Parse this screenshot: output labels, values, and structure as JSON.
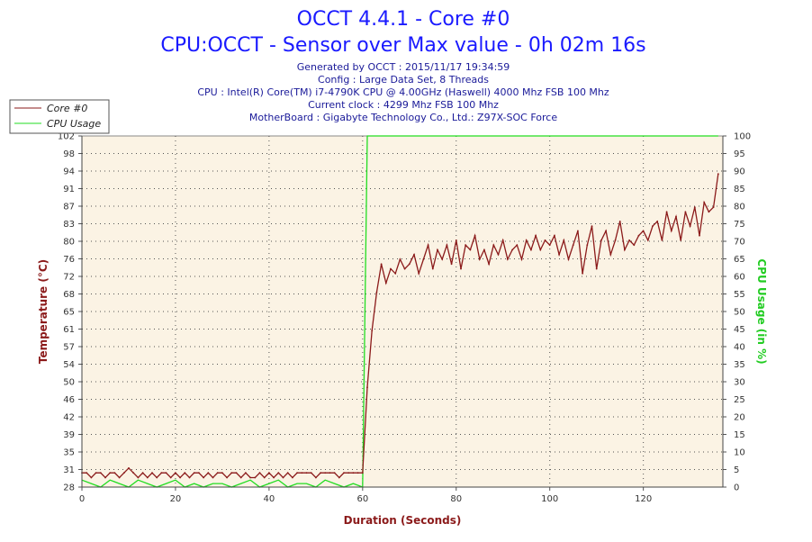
{
  "header": {
    "title": "OCCT 4.4.1 - Core #0",
    "subtitle": "CPU:OCCT - Sensor over Max value - 0h 02m 16s",
    "info": [
      "Generated by OCCT : 2015/11/17 19:34:59",
      "Config : Large Data Set, 8 Threads",
      "CPU : Intel(R) Core(TM) i7-4790K CPU @ 4.00GHz (Haswell) 4000 Mhz FSB 100 Mhz",
      "Current clock : 4299 Mhz FSB 100 Mhz",
      "MotherBoard : Gigabyte Technology Co., Ltd.: Z97X-SOC Force"
    ]
  },
  "chart_data": {
    "type": "line",
    "grid": true,
    "legend_placement": "top-left",
    "xlabel": "Duration (Seconds)",
    "ylabel_left": "Temperature (°C)",
    "ylabel_right": "CPU Usage (in %)",
    "xlim": [
      0,
      137
    ],
    "ylim_left": [
      28,
      102
    ],
    "ylim_right": [
      0,
      100
    ],
    "x_ticks": [
      "0",
      "20",
      "40",
      "60",
      "80",
      "100",
      "120"
    ],
    "y_ticks_left": [
      "28",
      "31",
      "35",
      "39",
      "42",
      "46",
      "50",
      "54",
      "57",
      "61",
      "65",
      "68",
      "72",
      "76",
      "80",
      "83",
      "87",
      "91",
      "94",
      "98",
      "102"
    ],
    "y_ticks_right": [
      "0",
      "5",
      "10",
      "15",
      "20",
      "25",
      "30",
      "35",
      "40",
      "45",
      "50",
      "55",
      "60",
      "65",
      "70",
      "75",
      "80",
      "85",
      "90",
      "95",
      "100"
    ],
    "colors": {
      "temperature": "#8b1a1a",
      "usage": "#22dd22",
      "plot_bg": "#fbf3e4"
    },
    "series": [
      {
        "name": "Core #0",
        "axis": "left",
        "x": [
          0,
          1,
          2,
          3,
          4,
          5,
          6,
          7,
          8,
          9,
          10,
          11,
          12,
          13,
          14,
          15,
          16,
          17,
          18,
          19,
          20,
          21,
          22,
          23,
          24,
          25,
          26,
          27,
          28,
          29,
          30,
          31,
          32,
          33,
          34,
          35,
          36,
          37,
          38,
          39,
          40,
          41,
          42,
          43,
          44,
          45,
          46,
          47,
          48,
          49,
          50,
          51,
          52,
          53,
          54,
          55,
          56,
          57,
          58,
          59,
          60,
          61,
          62,
          63,
          64,
          65,
          66,
          67,
          68,
          69,
          70,
          71,
          72,
          73,
          74,
          75,
          76,
          77,
          78,
          79,
          80,
          81,
          82,
          83,
          84,
          85,
          86,
          87,
          88,
          89,
          90,
          91,
          92,
          93,
          94,
          95,
          96,
          97,
          98,
          99,
          100,
          101,
          102,
          103,
          104,
          105,
          106,
          107,
          108,
          109,
          110,
          111,
          112,
          113,
          114,
          115,
          116,
          117,
          118,
          119,
          120,
          121,
          122,
          123,
          124,
          125,
          126,
          127,
          128,
          129,
          130,
          131,
          132,
          133,
          134,
          135,
          136
        ],
        "values": [
          31,
          31,
          30,
          31,
          31,
          30,
          31,
          31,
          30,
          31,
          32,
          31,
          30,
          31,
          30,
          31,
          30,
          31,
          31,
          30,
          31,
          30,
          31,
          30,
          31,
          31,
          30,
          31,
          30,
          31,
          31,
          30,
          31,
          31,
          30,
          31,
          30,
          30,
          31,
          30,
          31,
          30,
          31,
          30,
          31,
          30,
          31,
          31,
          31,
          31,
          30,
          31,
          31,
          31,
          31,
          30,
          31,
          31,
          31,
          31,
          31,
          49,
          61,
          69,
          75,
          71,
          74,
          73,
          76,
          74,
          75,
          77,
          73,
          76,
          79,
          74,
          78,
          76,
          79,
          75,
          80,
          74,
          79,
          78,
          81,
          76,
          78,
          75,
          79,
          77,
          80,
          76,
          78,
          79,
          76,
          80,
          78,
          81,
          78,
          80,
          79,
          81,
          77,
          80,
          76,
          79,
          82,
          73,
          79,
          83,
          74,
          80,
          82,
          77,
          80,
          84,
          78,
          80,
          79,
          81,
          82,
          80,
          83,
          84,
          80,
          86,
          82,
          85,
          80,
          86,
          83,
          87,
          81,
          88,
          86,
          87,
          94
        ]
      },
      {
        "name": "CPU Usage",
        "axis": "right",
        "x": [
          0,
          2,
          4,
          6,
          8,
          10,
          12,
          14,
          16,
          18,
          20,
          22,
          24,
          26,
          28,
          30,
          32,
          34,
          36,
          38,
          40,
          42,
          44,
          46,
          48,
          50,
          52,
          54,
          56,
          58,
          60,
          60.5,
          61,
          62,
          136
        ],
        "values": [
          2,
          1,
          0,
          2,
          1,
          0,
          2,
          1,
          0,
          1,
          2,
          0,
          1,
          0,
          1,
          1,
          0,
          1,
          2,
          0,
          1,
          2,
          0,
          1,
          1,
          0,
          2,
          1,
          0,
          1,
          0,
          50,
          100,
          100,
          100
        ]
      }
    ]
  }
}
